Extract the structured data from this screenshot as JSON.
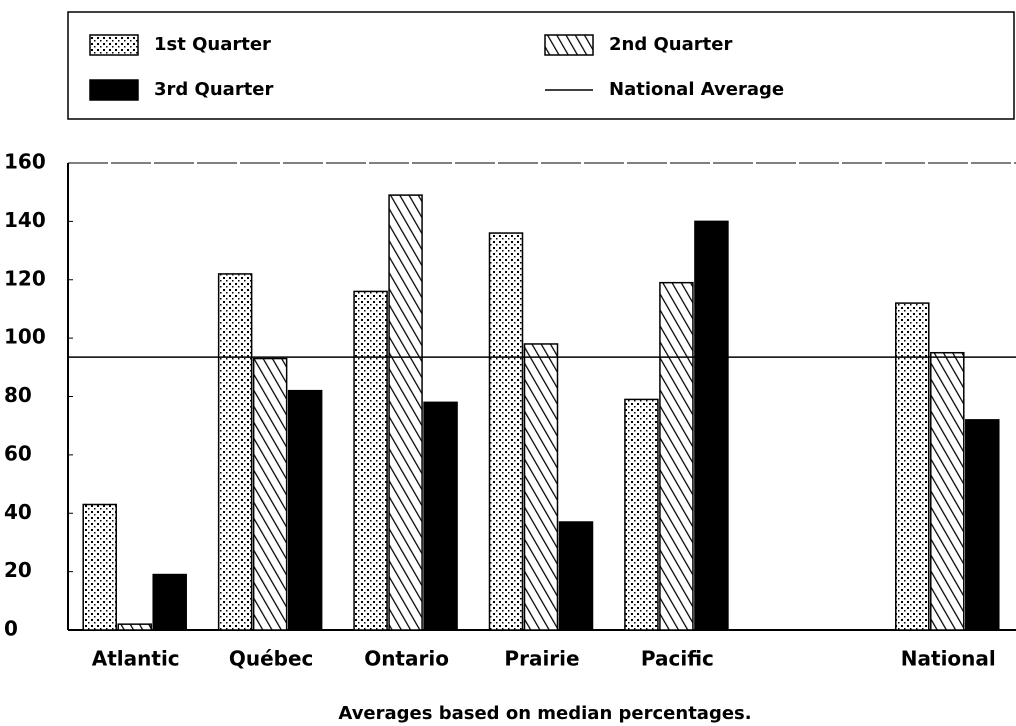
{
  "chart_data": {
    "type": "bar",
    "caption": "Averages based on median percentages.",
    "categories": [
      "Atlantic",
      "Québec",
      "Ontario",
      "Prairie",
      "Pacific",
      null,
      "National"
    ],
    "series": [
      {
        "name": "1st Quarter",
        "color": "#000000",
        "fill": "dots",
        "values": [
          43,
          122,
          116,
          136,
          79,
          null,
          112
        ]
      },
      {
        "name": "2nd Quarter",
        "color": "#000000",
        "fill": "hatch",
        "values": [
          2,
          93,
          149,
          98,
          119,
          null,
          95
        ]
      },
      {
        "name": "3rd Quarter",
        "color": "#000000",
        "fill": "solid",
        "values": [
          19,
          82,
          78,
          37,
          140,
          null,
          72
        ]
      }
    ],
    "national_average": {
      "name": "National Average",
      "value": 93.5
    },
    "ylim": [
      0,
      160
    ],
    "yticks": [
      0,
      20,
      40,
      60,
      80,
      100,
      120,
      140,
      160
    ]
  }
}
